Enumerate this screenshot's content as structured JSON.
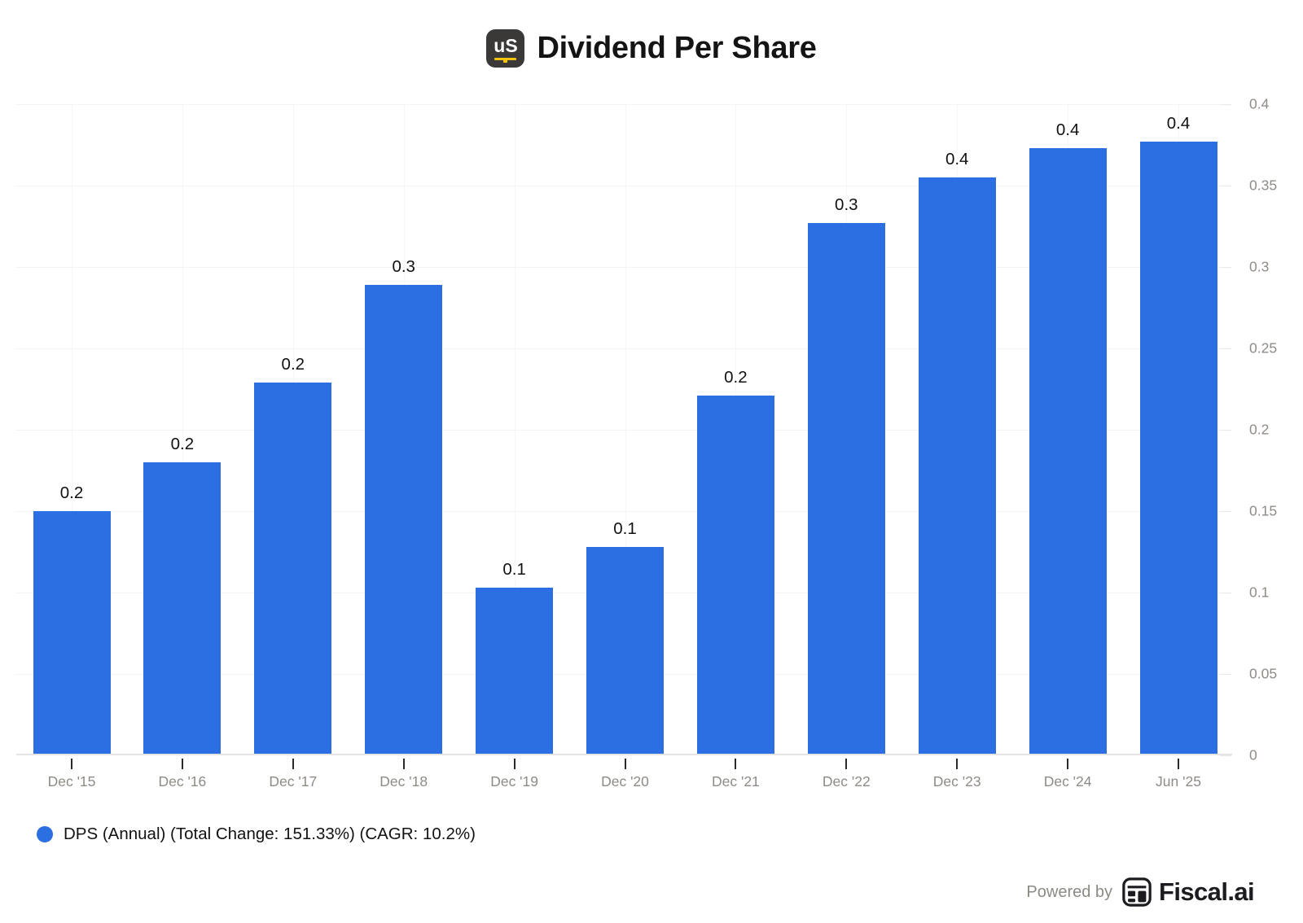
{
  "header": {
    "logo_text": "uS",
    "title": "Dividend Per Share"
  },
  "chart_data": {
    "type": "bar",
    "title": "Dividend Per Share",
    "categories": [
      "Dec '15",
      "Dec '16",
      "Dec '17",
      "Dec '18",
      "Dec '19",
      "Dec '20",
      "Dec '21",
      "Dec '22",
      "Dec '23",
      "Dec '24",
      "Jun '25"
    ],
    "series": [
      {
        "name": "DPS (Annual)",
        "values": [
          0.15,
          0.18,
          0.229,
          0.289,
          0.103,
          0.128,
          0.221,
          0.327,
          0.355,
          0.373,
          0.377
        ]
      }
    ],
    "bar_labels": [
      "0.2",
      "0.2",
      "0.2",
      "0.3",
      "0.1",
      "0.1",
      "0.2",
      "0.3",
      "0.4",
      "0.4",
      "0.4"
    ],
    "xlabel": "",
    "ylabel": "",
    "ylim": [
      0,
      0.4
    ],
    "y_ticks": [
      0,
      0.05,
      0.1,
      0.15,
      0.2,
      0.25,
      0.3,
      0.35,
      0.4
    ],
    "y_tick_labels": [
      "0",
      "0.05",
      "0.1",
      "0.15",
      "0.2",
      "0.25",
      "0.3",
      "0.35",
      "0.4"
    ],
    "yaxis_side": "right",
    "grid": true,
    "legend_position": "bottom-left",
    "bar_color": "#2b6fe3"
  },
  "legend": {
    "label": "DPS (Annual) (Total Change: 151.33%) (CAGR: 10.2%)",
    "marker_color": "#2b6fe3"
  },
  "footer": {
    "powered_by": "Powered by",
    "brand": "Fiscal.ai"
  },
  "colors": {
    "bar": "#2b6fe3",
    "grid_h": "#f4f4f4",
    "grid_v": "#f7f7f7",
    "axis_line": "#e4e4e4",
    "axis_label": "#8f8b86",
    "logo_bg": "#3a3937",
    "logo_underline": "#f2c40f"
  }
}
